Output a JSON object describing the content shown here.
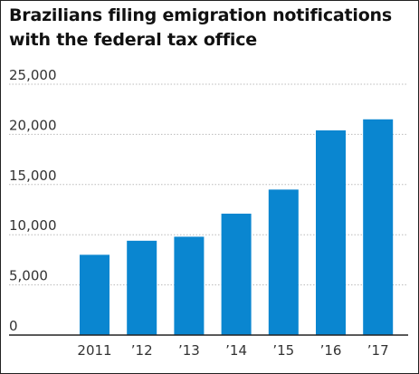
{
  "chart_data": {
    "type": "bar",
    "title": "Brazilians filing emigration notifications with the federal tax office",
    "categories": [
      "2011",
      "’12",
      "’13",
      "’14",
      "’15",
      "’16",
      "’17"
    ],
    "values": [
      8000,
      9400,
      9800,
      12100,
      14500,
      20400,
      21500
    ],
    "xlabel": "",
    "ylabel": "",
    "ylim": [
      0,
      25000
    ],
    "yticks": [
      0,
      5000,
      10000,
      15000,
      20000,
      25000
    ],
    "ytick_labels": [
      "0",
      "5,000",
      "10,000",
      "15,000",
      "20,000",
      "25,000"
    ],
    "grid": true,
    "bar_color": "#0a86d0",
    "grid_color": "#bbbbbb",
    "axis_color": "#222222"
  }
}
